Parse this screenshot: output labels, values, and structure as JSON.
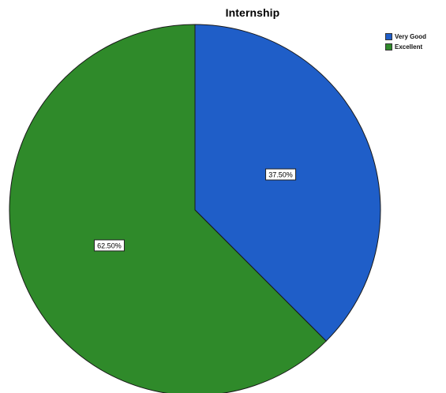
{
  "chart_data": {
    "type": "pie",
    "title": "Internship",
    "legend_position": "top-right",
    "slices": [
      {
        "label": "Very Good",
        "value": 37.5,
        "display": "37.50%",
        "color": "#1f5ec8"
      },
      {
        "label": "Excellent",
        "value": 62.5,
        "display": "62.50%",
        "color": "#2f8a2a"
      }
    ]
  }
}
